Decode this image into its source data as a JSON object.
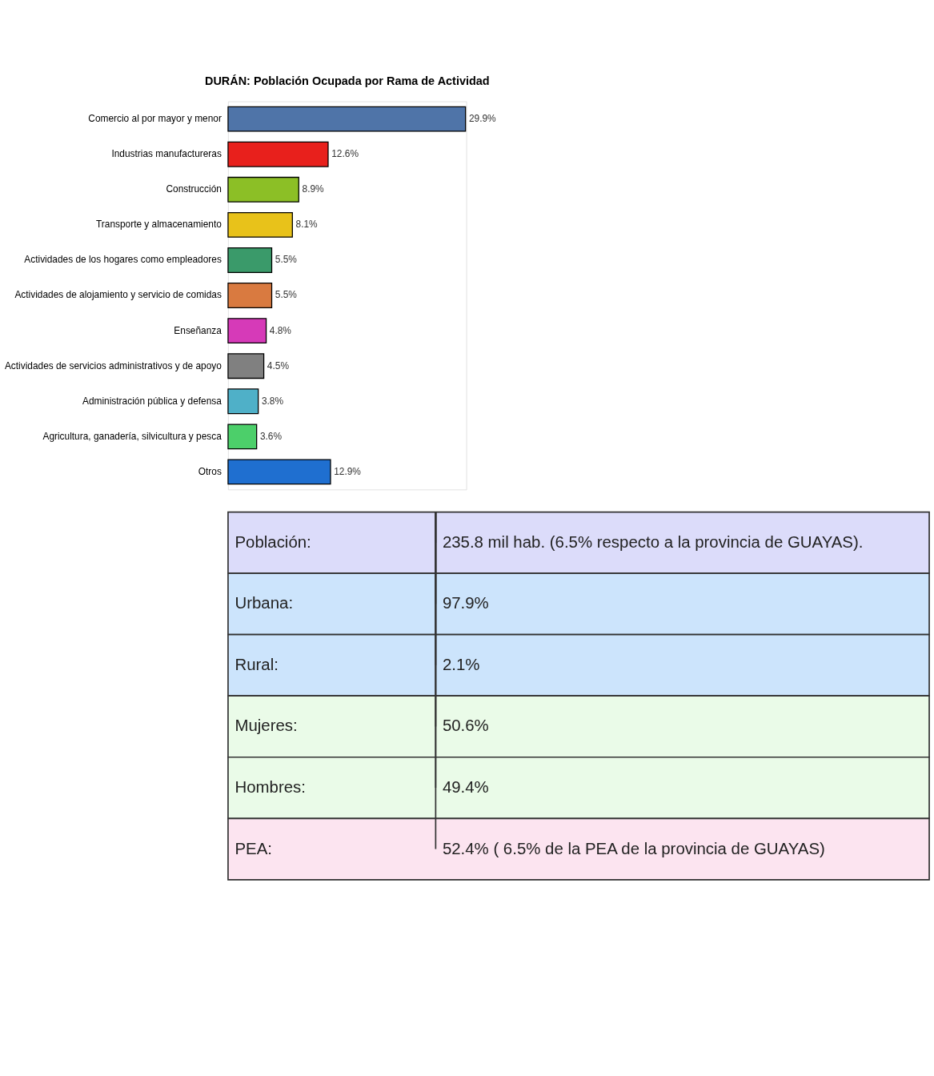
{
  "chart_data": [
    {
      "type": "bar",
      "orientation": "horizontal",
      "title": "DURÁN: Población Ocupada por Rama de Actividad",
      "categories": [
        "Comercio al por mayor y menor",
        "Industrias manufactureras",
        "Construcción",
        "Transporte y almacenamiento",
        "Actividades de los hogares como empleadores",
        "Actividades de alojamiento y servicio de comidas",
        "Enseñanza",
        "Actividades de servicios administrativos y de apoyo",
        "Administración pública y defensa",
        "Agricultura, ganadería, silvicultura y pesca",
        "Otros"
      ],
      "values": [
        29.9,
        12.6,
        8.9,
        8.1,
        5.5,
        5.5,
        4.8,
        4.5,
        3.8,
        3.6,
        12.9
      ],
      "value_labels": [
        "29.9%",
        "12.6%",
        "8.9%",
        "8.1%",
        "5.5%",
        "5.5%",
        "4.8%",
        "4.5%",
        "3.8%",
        "3.6%",
        "12.9%"
      ],
      "colors": [
        "#4f74a8",
        "#e8201c",
        "#8cbf26",
        "#e8c21a",
        "#3a9a6a",
        "#d97a40",
        "#d63ab8",
        "#808080",
        "#4fb0c8",
        "#4ccf6a",
        "#1f6fd0"
      ]
    },
    {
      "type": "other",
      "annotations": [
        "Población:",
        "235.8 mil hab. (6.5% respecto a la provincia de GUAYAS).",
        "Urbana:",
        "97.9%",
        "Rural:",
        "2.1%",
        "Mujeres:",
        "50.6%",
        "Hombres:",
        "49.4%",
        "PEA:",
        "52.4% ( 6.5% de la PEA de la provincia de GUAYAS)"
      ],
      "colors": [
        "#dcdcfa",
        "#cce4fc",
        "#cce4fc",
        "#eafbe8",
        "#eafbe8",
        "#fce4f0"
      ]
    }
  ]
}
